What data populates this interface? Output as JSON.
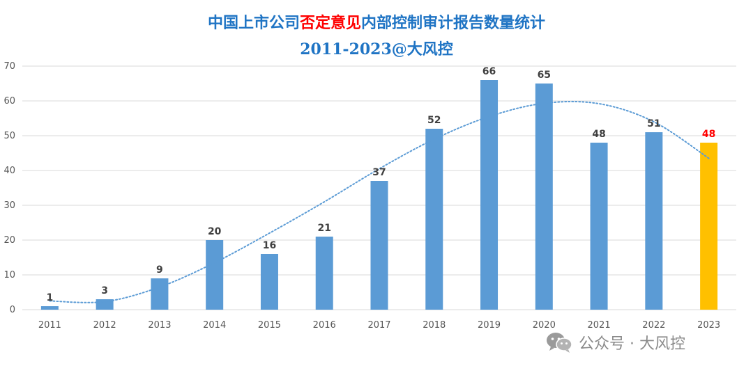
{
  "colors": {
    "title_blue": "#1f74c4",
    "title_red": "#ff0000",
    "bar": "#5b9bd5",
    "bar_highlight": "#ffc000",
    "label_default": "#404040",
    "label_highlight": "#ff0000",
    "grid": "#d9d9d9",
    "trend": "#5b9bd5"
  },
  "chart_data": {
    "type": "bar",
    "title_parts": [
      {
        "text": "中国上市公司",
        "color": "blue"
      },
      {
        "text": "否定意见",
        "color": "red"
      },
      {
        "text": "内部控制审计报告数量统计",
        "color": "blue"
      }
    ],
    "subtitle": "2011-2023@大风控",
    "categories": [
      "2011",
      "2012",
      "2013",
      "2014",
      "2015",
      "2016",
      "2017",
      "2018",
      "2019",
      "2020",
      "2021",
      "2022",
      "2023"
    ],
    "values": [
      1,
      3,
      9,
      20,
      16,
      21,
      37,
      52,
      66,
      65,
      48,
      51,
      48
    ],
    "highlight_index": 12,
    "ylim": [
      0,
      70
    ],
    "yticks": [
      0,
      10,
      20,
      30,
      40,
      50,
      60,
      70
    ],
    "grid": true,
    "trendline": {
      "type": "polynomial",
      "style": "dotted",
      "values": [
        2.5,
        2.3,
        6.5,
        13.5,
        22.0,
        31.0,
        40.5,
        49.0,
        55.5,
        59.3,
        59.2,
        54.0,
        43.5
      ]
    },
    "xlabel": "",
    "ylabel": ""
  },
  "watermark": {
    "icon": "wechat-icon",
    "text": "公众号 · 大风控"
  }
}
